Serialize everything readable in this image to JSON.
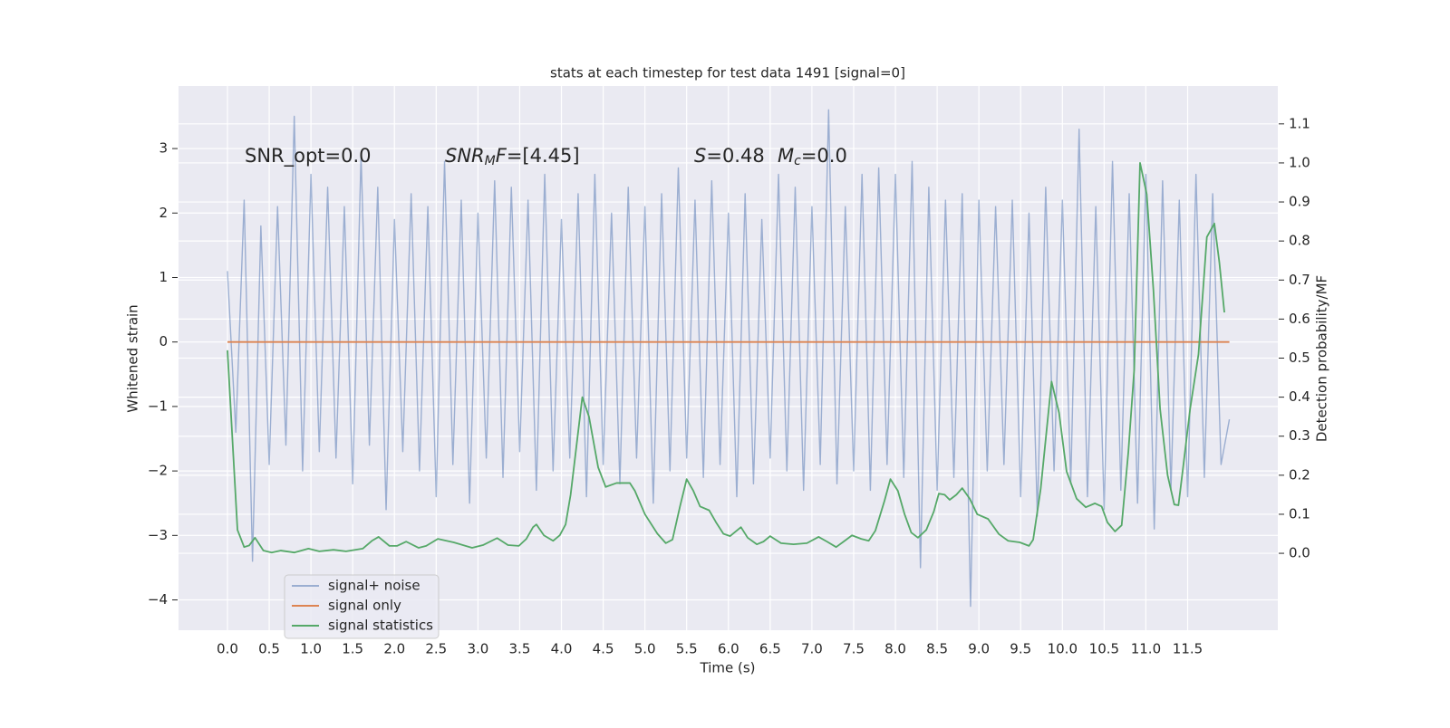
{
  "chart_data": {
    "type": "line",
    "title": "stats at each timestep for test data 1491 [signal=0]",
    "x_label": "Time (s)",
    "y_label": "Whitened strain",
    "y2_label": "Detection probability/MF",
    "annotations": [
      [
        {
          "text": "SNR_opt=0.0",
          "italic": false,
          "sub": false
        }
      ],
      [
        {
          "text": "SNR",
          "italic": true,
          "sub": false
        },
        {
          "text": "M",
          "italic": true,
          "sub": true
        },
        {
          "text": "F",
          "italic": true,
          "sub": false
        },
        {
          "text": "=[4.45]",
          "italic": false,
          "sub": false
        }
      ],
      [
        {
          "text": "S",
          "italic": true,
          "sub": false
        },
        {
          "text": "=0.48",
          "italic": false,
          "sub": false
        }
      ],
      [
        {
          "text": "M",
          "italic": true,
          "sub": false
        },
        {
          "text": "c",
          "italic": true,
          "sub": true
        },
        {
          "text": "=0.0",
          "italic": false,
          "sub": false
        }
      ]
    ],
    "xlim": [
      -0.586,
      12.58
    ],
    "ylim": [
      -4.47,
      3.97
    ],
    "y2lim": [
      -0.197,
      1.197
    ],
    "xticks": [
      {
        "value": 0,
        "label": "0.0"
      },
      0.5,
      {
        "value": 1,
        "label": "1.0"
      },
      1.5,
      {
        "value": 2,
        "label": "2.0"
      },
      2.5,
      {
        "value": 3,
        "label": "3.0"
      },
      3.5,
      {
        "value": 4,
        "label": "4.0"
      },
      4.5,
      {
        "value": 5,
        "label": "5.0"
      },
      5.5,
      {
        "value": 6,
        "label": "6.0"
      },
      6.5,
      {
        "value": 7,
        "label": "7.0"
      },
      7.5,
      {
        "value": 8,
        "label": "8.0"
      },
      8.5,
      {
        "value": 9,
        "label": "9.0"
      },
      9.5,
      {
        "value": 10,
        "label": "10.0"
      },
      10.5,
      {
        "value": 11,
        "label": "11.0"
      },
      11.5
    ],
    "yticks": [
      {
        "value": -4,
        "label": "−4"
      },
      {
        "value": -3,
        "label": "−3"
      },
      {
        "value": -2,
        "label": "−2"
      },
      {
        "value": -1,
        "label": "−1"
      },
      0,
      1,
      2,
      3
    ],
    "y2ticks": [
      {
        "value": 0,
        "label": "0.0"
      },
      0.1,
      0.2,
      0.3,
      0.4,
      0.5,
      0.6,
      0.7,
      0.8,
      0.9,
      {
        "value": 1,
        "label": "1.0"
      },
      1.1
    ],
    "grid": true,
    "legend": "lower left",
    "series": [
      {
        "name": "signal+ noise",
        "color": "#4c72b0",
        "opacity": 0.5,
        "x": [
          0,
          0.1,
          0.2,
          0.3,
          0.4,
          0.5,
          0.6,
          0.7,
          0.8,
          0.9,
          1,
          1.1,
          1.2,
          1.3,
          1.4,
          1.5,
          1.6,
          1.7,
          1.8,
          1.9,
          2,
          2.1,
          2.2,
          2.3,
          2.4,
          2.5,
          2.6,
          2.7,
          2.8,
          2.9,
          3,
          3.1,
          3.2,
          3.3,
          3.4,
          3.5,
          3.6,
          3.7,
          3.8,
          3.9,
          4,
          4.1,
          4.2,
          4.3,
          4.4,
          4.5,
          4.6,
          4.7,
          4.8,
          4.9,
          5,
          5.1,
          5.2,
          5.3,
          5.4,
          5.5,
          5.6,
          5.7,
          5.8,
          5.9,
          6,
          6.1,
          6.2,
          6.3,
          6.4,
          6.5,
          6.6,
          6.7,
          6.8,
          6.9,
          7,
          7.1,
          7.2,
          7.3,
          7.4,
          7.5,
          7.6,
          7.7,
          7.8,
          7.9,
          8,
          8.1,
          8.2,
          8.3,
          8.4,
          8.5,
          8.6,
          8.7,
          8.8,
          8.9,
          9,
          9.1,
          9.2,
          9.3,
          9.4,
          9.5,
          9.6,
          9.7,
          9.8,
          9.9,
          10,
          10.1,
          10.2,
          10.3,
          10.4,
          10.5,
          10.6,
          10.7,
          10.8,
          10.9,
          11,
          11.1,
          11.2,
          11.3,
          11.4,
          11.5,
          11.6,
          11.7,
          11.8,
          11.9,
          12
        ],
        "values": [
          1.1,
          -1.4,
          2.2,
          -3.4,
          1.8,
          -1.9,
          2.1,
          -1.6,
          3.5,
          -2.0,
          2.6,
          -1.7,
          2.4,
          -1.8,
          2.1,
          -2.2,
          2.9,
          -1.6,
          2.4,
          -2.6,
          1.9,
          -1.7,
          2.3,
          -2.0,
          2.1,
          -2.4,
          2.8,
          -1.9,
          2.2,
          -2.5,
          2.0,
          -1.8,
          2.5,
          -2.1,
          2.4,
          -1.7,
          2.2,
          -2.3,
          2.6,
          -2.0,
          1.9,
          -1.8,
          2.3,
          -2.4,
          2.6,
          -1.9,
          2.0,
          -2.2,
          2.4,
          -1.8,
          2.1,
          -2.5,
          2.3,
          -2.0,
          2.7,
          -1.8,
          2.2,
          -2.1,
          2.5,
          -1.9,
          2.0,
          -2.4,
          2.3,
          -2.2,
          1.9,
          -1.8,
          2.6,
          -2.0,
          2.4,
          -2.3,
          2.1,
          -1.9,
          3.6,
          -2.2,
          2.1,
          -2.0,
          2.6,
          -2.3,
          2.7,
          -1.9,
          2.6,
          -2.1,
          2.8,
          -3.5,
          2.4,
          -2.3,
          2.2,
          -2.1,
          2.3,
          -4.1,
          2.2,
          -2.0,
          2.1,
          -1.9,
          2.2,
          -2.4,
          2.0,
          -2.7,
          2.4,
          -2.0,
          2.2,
          -2.2,
          3.3,
          -2.4,
          2.1,
          -2.6,
          2.8,
          -2.3,
          2.3,
          -2.5,
          2.6,
          -2.9,
          2.5,
          -2.3,
          2.2,
          -2.4,
          2.6,
          -2.1,
          2.3,
          -1.9,
          -1.2
        ]
      },
      {
        "name": "signal only",
        "color": "#dd8452",
        "opacity": 1,
        "x": [
          0,
          12
        ],
        "values": [
          0,
          0
        ]
      },
      {
        "name": "signal statistics",
        "color": "#55a868",
        "opacity": 1,
        "axis": "y2",
        "x": [
          0,
          0.12,
          0.2,
          0.26,
          0.33,
          0.43,
          0.53,
          0.64,
          0.8,
          0.97,
          1.1,
          1.27,
          1.42,
          1.62,
          1.73,
          1.81,
          1.94,
          2.03,
          2.14,
          2.29,
          2.38,
          2.52,
          2.71,
          2.93,
          3.06,
          3.23,
          3.36,
          3.49,
          3.58,
          3.66,
          3.7,
          3.79,
          3.9,
          3.98,
          4.05,
          4.11,
          4.25,
          4.33,
          4.44,
          4.53,
          4.66,
          4.82,
          4.88,
          5.0,
          5.15,
          5.25,
          5.33,
          5.42,
          5.5,
          5.58,
          5.66,
          5.77,
          5.85,
          5.94,
          6.02,
          6.15,
          6.23,
          6.34,
          6.42,
          6.5,
          6.63,
          6.78,
          6.94,
          7.08,
          7.18,
          7.29,
          7.38,
          7.48,
          7.59,
          7.68,
          7.76,
          7.87,
          7.94,
          8.03,
          8.11,
          8.19,
          8.27,
          8.37,
          8.46,
          8.52,
          8.59,
          8.65,
          8.73,
          8.8,
          8.89,
          8.98,
          9.11,
          9.24,
          9.35,
          9.49,
          9.6,
          9.65,
          9.74,
          9.87,
          9.96,
          10.05,
          10.17,
          10.28,
          10.39,
          10.47,
          10.54,
          10.63,
          10.71,
          10.79,
          10.86,
          10.93,
          11.01,
          11.09,
          11.17,
          11.26,
          11.34,
          11.39,
          11.44,
          11.53,
          11.63,
          11.73,
          11.82,
          11.88,
          11.94
        ],
        "values": [
          0.52,
          0.06,
          0.016,
          0.02,
          0.04,
          0.007,
          0.002,
          0.007,
          0.002,
          0.012,
          0.005,
          0.009,
          0.005,
          0.012,
          0.032,
          0.042,
          0.019,
          0.019,
          0.03,
          0.014,
          0.019,
          0.037,
          0.028,
          0.014,
          0.021,
          0.039,
          0.021,
          0.019,
          0.037,
          0.067,
          0.074,
          0.046,
          0.032,
          0.046,
          0.074,
          0.15,
          0.4,
          0.35,
          0.22,
          0.17,
          0.18,
          0.18,
          0.16,
          0.1,
          0.05,
          0.026,
          0.035,
          0.12,
          0.19,
          0.16,
          0.12,
          0.11,
          0.08,
          0.05,
          0.044,
          0.067,
          0.04,
          0.023,
          0.03,
          0.044,
          0.026,
          0.023,
          0.026,
          0.042,
          0.03,
          0.016,
          0.03,
          0.046,
          0.037,
          0.032,
          0.058,
          0.135,
          0.19,
          0.16,
          0.1,
          0.053,
          0.04,
          0.06,
          0.107,
          0.153,
          0.15,
          0.137,
          0.15,
          0.167,
          0.14,
          0.1,
          0.088,
          0.049,
          0.032,
          0.028,
          0.019,
          0.035,
          0.165,
          0.44,
          0.36,
          0.21,
          0.14,
          0.118,
          0.128,
          0.12,
          0.079,
          0.056,
          0.072,
          0.26,
          0.47,
          1.0,
          0.92,
          0.675,
          0.37,
          0.2,
          0.125,
          0.123,
          0.21,
          0.37,
          0.51,
          0.81,
          0.845,
          0.745,
          0.617
        ]
      }
    ]
  }
}
